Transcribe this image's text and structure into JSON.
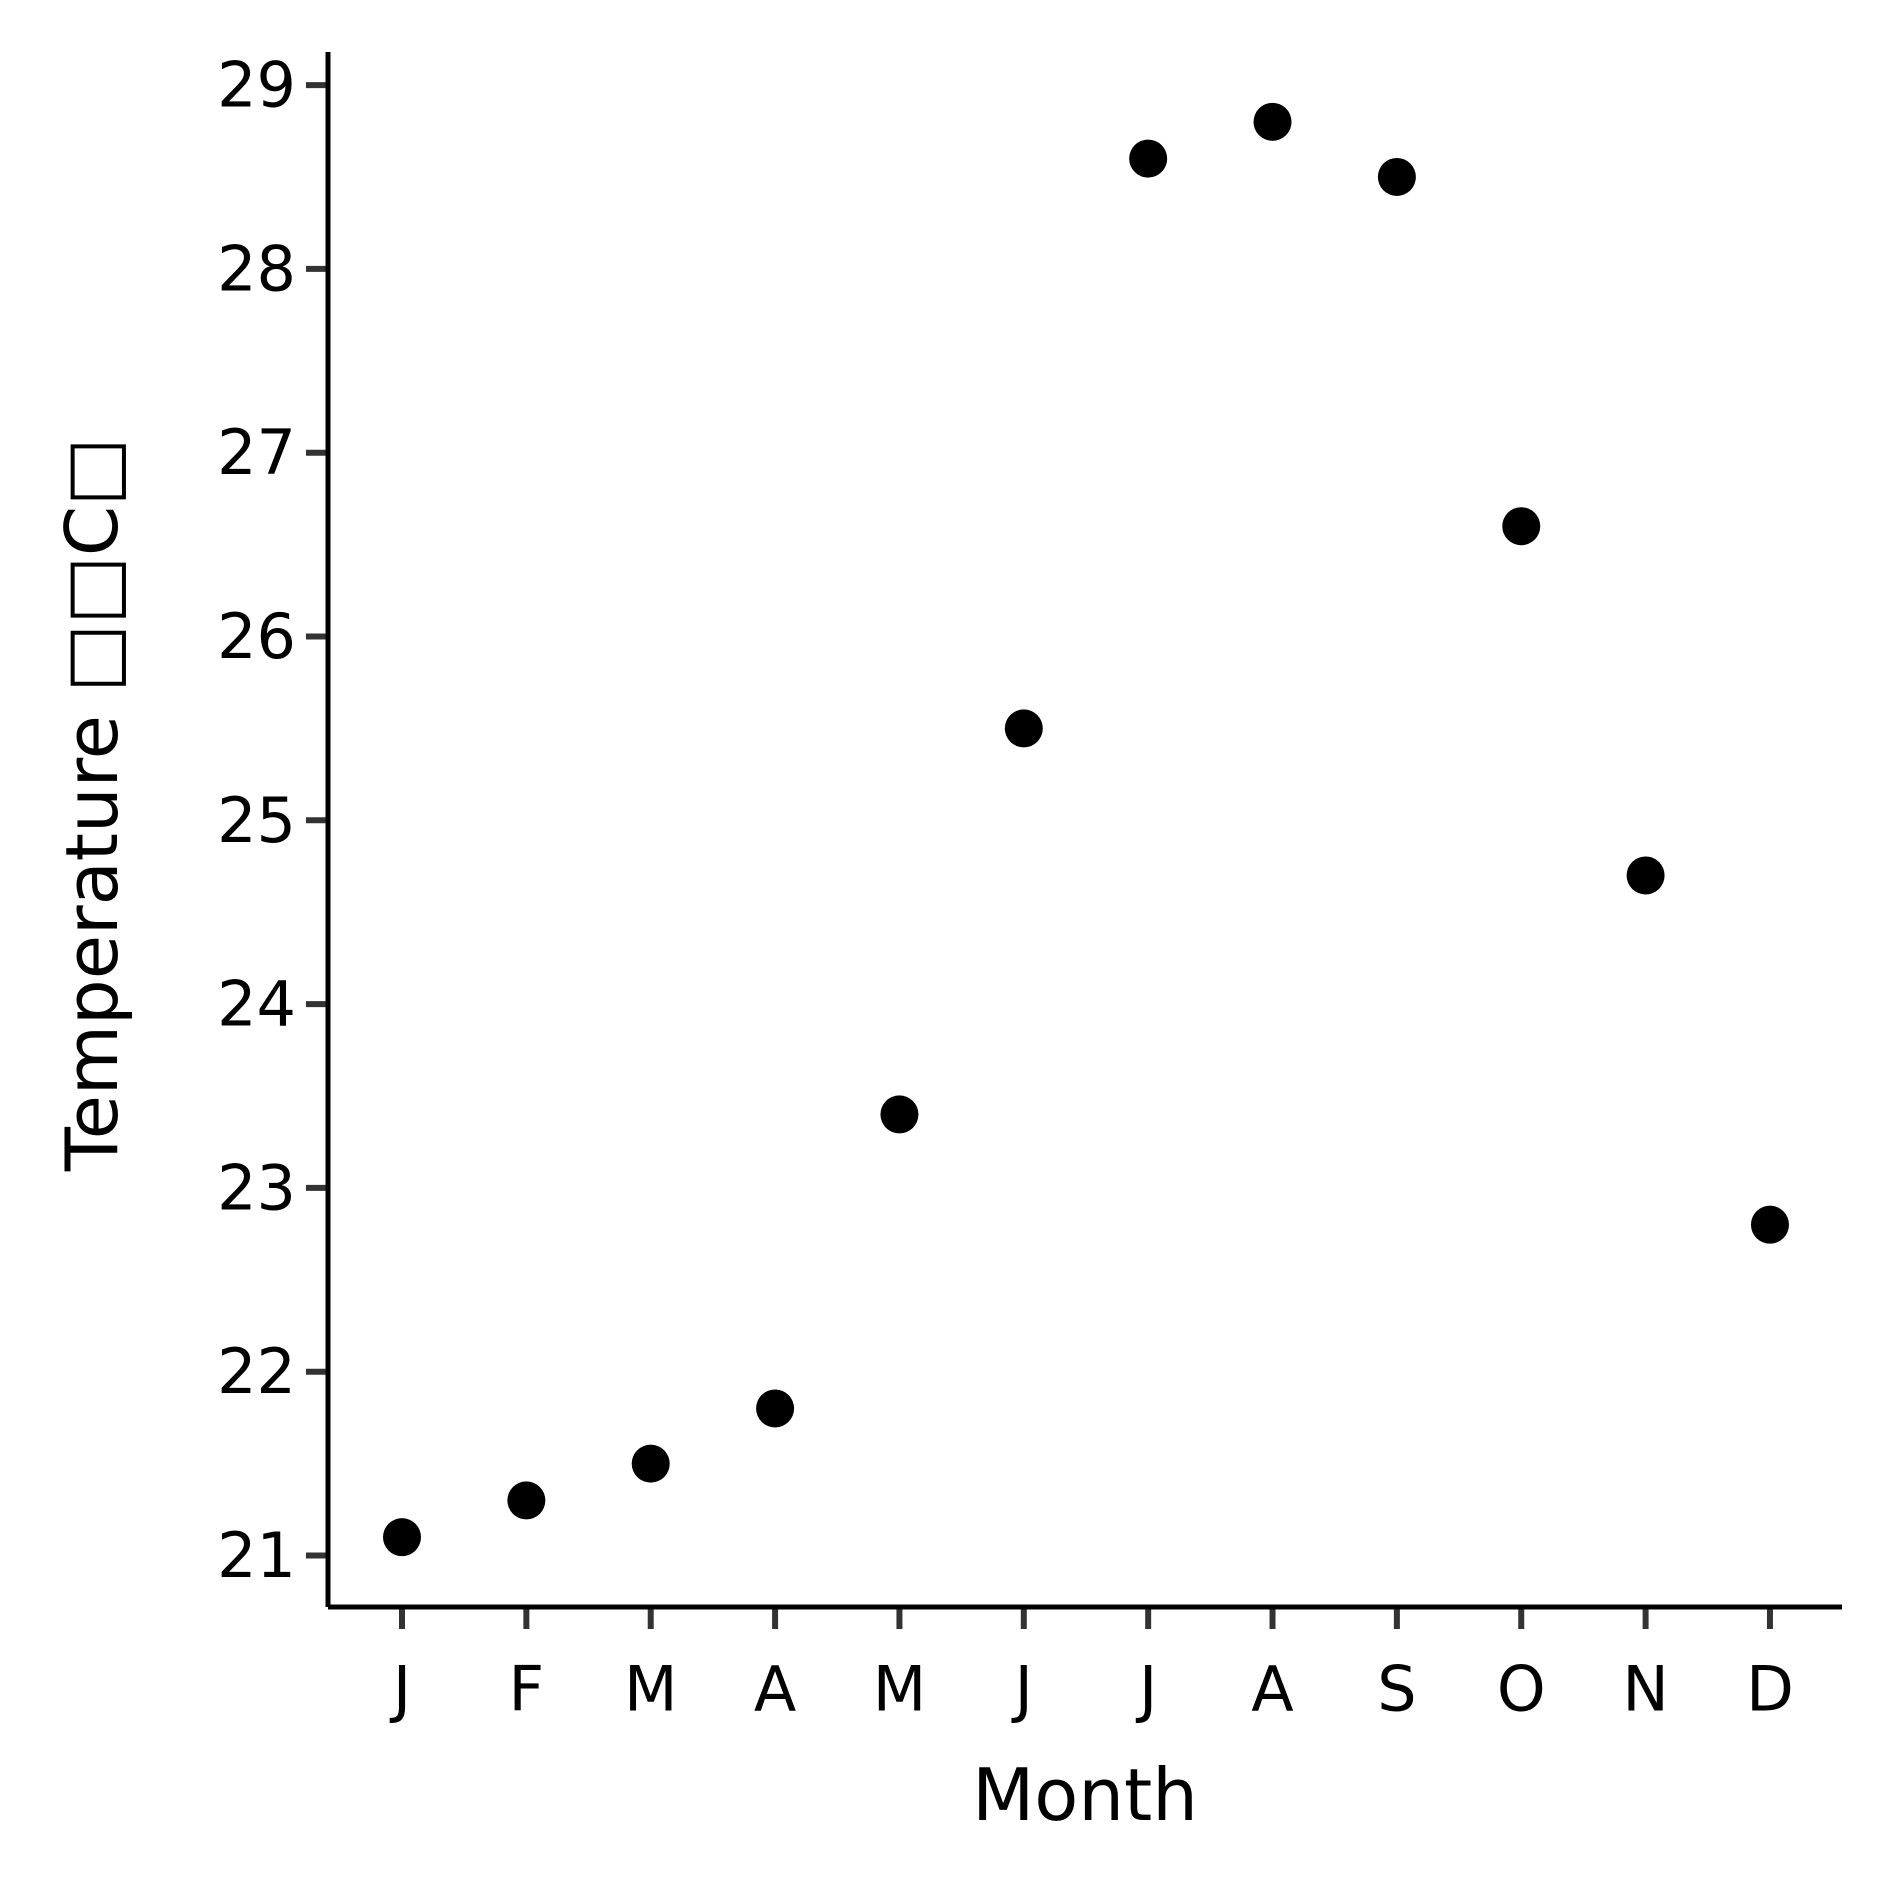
{
  "chart_data": {
    "type": "scatter",
    "title": "",
    "xlabel": "Month",
    "ylabel": "Temperature □□C□",
    "categories": [
      "J",
      "F",
      "M",
      "A",
      "M",
      "J",
      "J",
      "A",
      "S",
      "O",
      "N",
      "D"
    ],
    "values": [
      21.1,
      21.3,
      21.5,
      21.8,
      23.4,
      25.5,
      28.6,
      28.8,
      28.5,
      26.6,
      24.7,
      22.8
    ],
    "ylim": [
      20.72,
      29.18
    ],
    "yticks": [
      21,
      22,
      23,
      24,
      25,
      26,
      27,
      28,
      29
    ],
    "ytick_labels": [
      "21",
      "22",
      "23",
      "24",
      "25",
      "26",
      "27",
      "28",
      "29"
    ],
    "grid": false,
    "legend": "none",
    "marker_color": "#000000",
    "axis_color": "#000000",
    "tick_color": "#333333"
  }
}
